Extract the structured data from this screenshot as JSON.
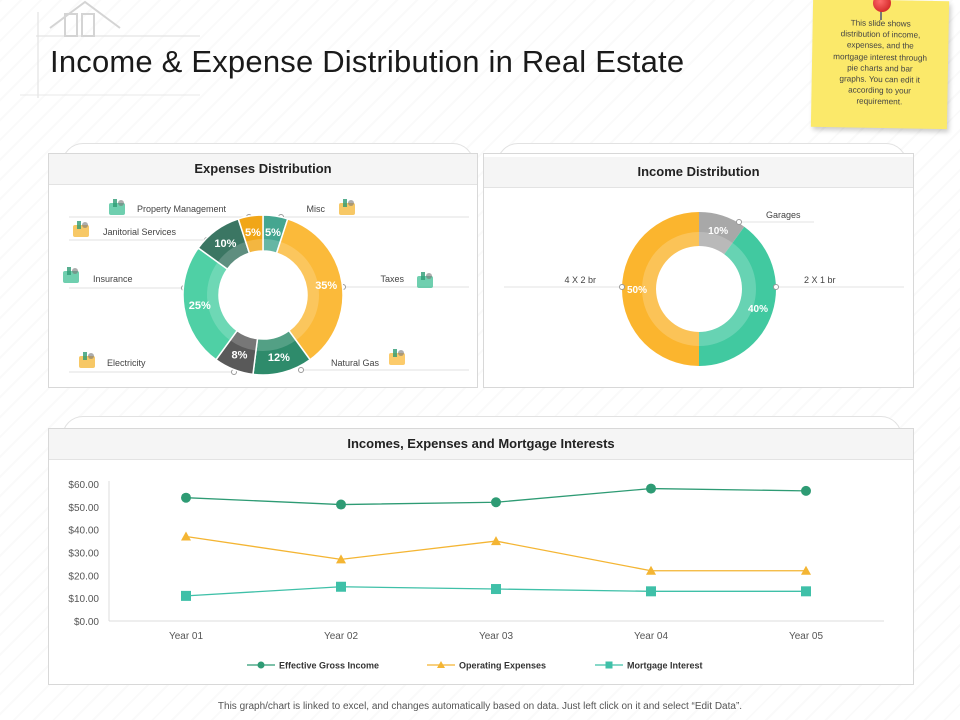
{
  "title": "Income & Expense Distribution in Real Estate",
  "note": {
    "lines": [
      "This slide shows",
      "distribution of income,",
      "expenses, and the",
      "mortgage interest through",
      "pie charts and bar",
      "graphs. You can edit it",
      "according to your",
      "requirement."
    ],
    "color": "#fbe96a"
  },
  "footer": "This graph/chart is linked to excel, and changes automatically based on data. Just left click on it and select “Edit Data”.",
  "panels": {
    "expenses": "Expenses Distribution",
    "income": "Income Distribution",
    "line": "Incomes, Expenses and Mortgage Interests"
  },
  "icons": {
    "expenses": [
      "bar-chart-icon",
      "hand-money-icon",
      "umbrella-icon",
      "house-icon",
      "bar-chart-icon",
      "tax-icon",
      "fuel-can-icon"
    ]
  },
  "chart_data": [
    {
      "type": "pie",
      "title": "Expenses Distribution",
      "categories": [
        "Misc",
        "Taxes",
        "Natural Gas",
        "Electricity",
        "Insurance",
        "Janitorial Services",
        "Property Management"
      ],
      "values": [
        5,
        35,
        12,
        8,
        25,
        10,
        5
      ],
      "labels": [
        "5%",
        "35%",
        "12%",
        "8%",
        "25%",
        "10%",
        "5%"
      ],
      "colors": [
        "#45a690",
        "#fbba3a",
        "#2e8b6b",
        "#595959",
        "#4fd0a5",
        "#3b7663",
        "#f1a618"
      ]
    },
    {
      "type": "pie",
      "title": "Income Distribution",
      "categories": [
        "Garages",
        "2 X 1 br",
        "4 X 2 br"
      ],
      "values": [
        10,
        40,
        50
      ],
      "labels": [
        "10%",
        "40%",
        "50%"
      ],
      "colors": [
        "#a8a8a8",
        "#41c9a0",
        "#fbb52e"
      ]
    },
    {
      "type": "line",
      "title": "Incomes, Expenses and Mortgage Interests",
      "categories": [
        "Year 01",
        "Year 02",
        "Year 03",
        "Year 04",
        "Year 05"
      ],
      "series": [
        {
          "name": "Effective Gross Income",
          "values": [
            54,
            51,
            52,
            58,
            57
          ],
          "color": "#2e9b74",
          "marker": "circle"
        },
        {
          "name": "Operating Expenses",
          "values": [
            37,
            27,
            35,
            22,
            22
          ],
          "color": "#f4b533",
          "marker": "triangle"
        },
        {
          "name": "Mortgage Interest",
          "values": [
            11,
            15,
            14,
            13,
            13
          ],
          "color": "#3fc0a8",
          "marker": "square"
        }
      ],
      "yticks": [
        "$0.00",
        "$10.00",
        "$20.00",
        "$30.00",
        "$40.00",
        "$50.00",
        "$60.00"
      ],
      "ylim": [
        0,
        60
      ],
      "legend": "bottom",
      "grid": false
    }
  ]
}
